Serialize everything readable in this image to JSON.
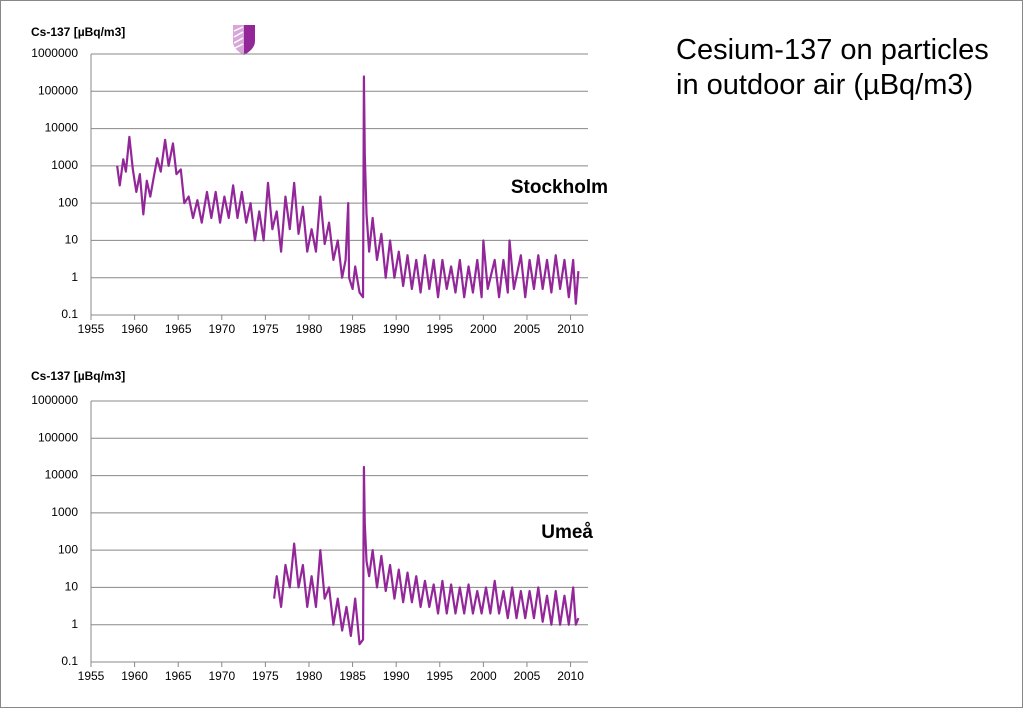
{
  "slide_title": "Cesium-137 on particles in outdoor air (µBq/m3)",
  "chart_data": [
    {
      "type": "line",
      "ylabel": "Cs-137 [µBq/m3]",
      "annotation": "Stockholm",
      "log_y": true,
      "grid": true,
      "xlim": [
        1955,
        2012
      ],
      "xticks": [
        1955,
        1960,
        1965,
        1970,
        1975,
        1980,
        1985,
        1990,
        1995,
        2000,
        2005,
        2010
      ],
      "ylim": [
        0.1,
        1000000
      ],
      "yticks": [
        0.1,
        1,
        10,
        100,
        1000,
        10000,
        100000,
        1000000
      ],
      "x": [
        1958.0,
        1958.3,
        1958.7,
        1959.0,
        1959.4,
        1959.8,
        1960.2,
        1960.6,
        1961.0,
        1961.4,
        1961.8,
        1962.2,
        1962.6,
        1963.0,
        1963.5,
        1963.9,
        1964.4,
        1964.8,
        1965.3,
        1965.7,
        1966.2,
        1966.7,
        1967.2,
        1967.7,
        1968.3,
        1968.8,
        1969.3,
        1969.8,
        1970.3,
        1970.8,
        1971.3,
        1971.8,
        1972.3,
        1972.8,
        1973.3,
        1973.8,
        1974.3,
        1974.8,
        1975.3,
        1975.8,
        1976.3,
        1976.8,
        1977.3,
        1977.8,
        1978.3,
        1978.8,
        1979.3,
        1979.8,
        1980.3,
        1980.8,
        1981.3,
        1981.8,
        1982.3,
        1982.8,
        1983.3,
        1983.8,
        1984.2,
        1984.5,
        1984.6,
        1985.0,
        1985.3,
        1985.8,
        1986.2,
        1986.3,
        1986.4,
        1986.6,
        1986.9,
        1987.3,
        1987.8,
        1988.3,
        1988.8,
        1989.3,
        1989.8,
        1990.3,
        1990.8,
        1991.3,
        1991.8,
        1992.3,
        1992.8,
        1993.3,
        1993.8,
        1994.3,
        1994.8,
        1995.3,
        1995.8,
        1996.3,
        1996.8,
        1997.3,
        1997.8,
        1998.3,
        1998.8,
        1999.3,
        1999.8,
        2000.0,
        2000.5,
        2001.3,
        2001.8,
        2002.3,
        2002.8,
        2003.0,
        2003.5,
        2004.3,
        2004.8,
        2005.3,
        2005.8,
        2006.3,
        2006.8,
        2007.3,
        2007.8,
        2008.3,
        2008.8,
        2009.3,
        2009.8,
        2010.3,
        2010.6,
        2010.9
      ],
      "series": [
        {
          "color": "#93279a",
          "values": [
            1000,
            300,
            1500,
            700,
            6000,
            800,
            200,
            600,
            50,
            400,
            150,
            500,
            1600,
            700,
            5000,
            1000,
            4000,
            600,
            800,
            100,
            150,
            40,
            120,
            30,
            200,
            40,
            200,
            30,
            150,
            40,
            300,
            40,
            200,
            30,
            100,
            10,
            60,
            10,
            350,
            20,
            60,
            5,
            150,
            20,
            350,
            15,
            80,
            5,
            20,
            5,
            150,
            8,
            30,
            3,
            10,
            1,
            3,
            100,
            1,
            0.5,
            2,
            0.4,
            0.3,
            250000,
            2000,
            50,
            5,
            40,
            3,
            15,
            1,
            10,
            1,
            5,
            0.6,
            4,
            0.5,
            3,
            0.4,
            4,
            0.5,
            3,
            0.3,
            3,
            0.5,
            2,
            0.4,
            3,
            0.3,
            2,
            0.4,
            3,
            0.3,
            10,
            0.5,
            3,
            0.3,
            3,
            0.4,
            10,
            0.5,
            4,
            0.3,
            3,
            0.5,
            4,
            0.5,
            3,
            0.4,
            4,
            0.5,
            3,
            0.3,
            3,
            0.2,
            1.5
          ]
        }
      ]
    },
    {
      "type": "line",
      "ylabel": "Cs-137 [µBq/m3]",
      "annotation": "Umeå",
      "log_y": true,
      "grid": true,
      "xlim": [
        1955,
        2012
      ],
      "xticks": [
        1955,
        1960,
        1965,
        1970,
        1975,
        1980,
        1985,
        1990,
        1995,
        2000,
        2005,
        2010
      ],
      "ylim": [
        0.1,
        1000000
      ],
      "yticks": [
        0.1,
        1,
        10,
        100,
        1000,
        10000,
        100000,
        1000000
      ],
      "x": [
        1976.0,
        1976.3,
        1976.8,
        1977.3,
        1977.8,
        1978.3,
        1978.8,
        1979.3,
        1979.8,
        1980.3,
        1980.8,
        1981.3,
        1981.8,
        1982.3,
        1982.8,
        1983.3,
        1983.8,
        1984.3,
        1984.8,
        1985.3,
        1985.8,
        1986.2,
        1986.3,
        1986.4,
        1986.6,
        1986.9,
        1987.3,
        1987.8,
        1988.3,
        1988.8,
        1989.3,
        1989.8,
        1990.3,
        1990.8,
        1991.3,
        1991.8,
        1992.3,
        1992.8,
        1993.3,
        1993.8,
        1994.3,
        1994.8,
        1995.3,
        1995.8,
        1996.3,
        1996.8,
        1997.3,
        1997.8,
        1998.3,
        1998.8,
        1999.3,
        1999.8,
        2000.3,
        2000.8,
        2001.3,
        2001.8,
        2002.3,
        2002.8,
        2003.3,
        2003.8,
        2004.3,
        2004.8,
        2005.3,
        2005.8,
        2006.3,
        2006.8,
        2007.3,
        2007.8,
        2008.3,
        2008.8,
        2009.3,
        2009.8,
        2010.3,
        2010.6,
        2010.9
      ],
      "series": [
        {
          "color": "#93279a",
          "values": [
            5,
            20,
            3,
            40,
            10,
            150,
            10,
            40,
            3,
            20,
            3,
            100,
            5,
            10,
            1,
            5,
            0.7,
            3,
            0.5,
            5,
            0.3,
            0.4,
            17000,
            500,
            50,
            20,
            100,
            10,
            70,
            8,
            40,
            5,
            30,
            4,
            25,
            4,
            20,
            3,
            15,
            3,
            12,
            2,
            15,
            2,
            12,
            2,
            10,
            2,
            12,
            2,
            8,
            2,
            10,
            2,
            15,
            2,
            8,
            1.5,
            10,
            1.5,
            8,
            1.5,
            8,
            1.5,
            10,
            1.2,
            6,
            1,
            8,
            1,
            6,
            1,
            10,
            1,
            1.5
          ]
        }
      ]
    }
  ]
}
